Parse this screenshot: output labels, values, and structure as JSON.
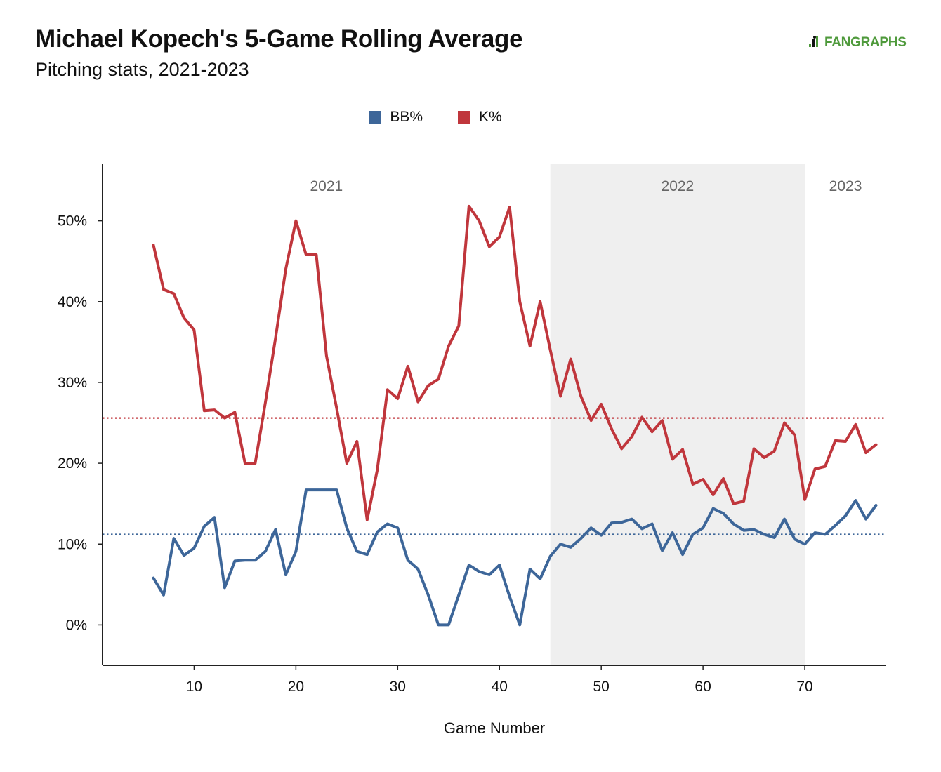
{
  "header": {
    "title": "Michael Kopech's 5-Game Rolling Average",
    "subtitle": "Pitching stats, 2021-2023",
    "logo_text": "FANGRAPHS",
    "logo_icon": "fangraphs-logo-icon"
  },
  "colors": {
    "bb": "#3d6699",
    "k": "#c0363c",
    "shade": "#efefef",
    "axis": "#222222",
    "logo": "#4f9a3c"
  },
  "chart_data": {
    "type": "line",
    "title": "Michael Kopech's 5-Game Rolling Average",
    "subtitle": "Pitching stats, 2021-2023",
    "xlabel": "Game Number",
    "ylabel": "",
    "xlim": [
      1,
      78
    ],
    "ylim": [
      -5,
      57
    ],
    "x_ticks": [
      10,
      20,
      30,
      40,
      50,
      60,
      70
    ],
    "y_ticks": [
      0,
      10,
      20,
      30,
      40,
      50
    ],
    "y_tick_labels": [
      "0%",
      "10%",
      "20%",
      "30%",
      "40%",
      "50%"
    ],
    "legend_position": "top-center",
    "grid": false,
    "season_regions": [
      {
        "label": "2021",
        "start": 1,
        "end": 45,
        "shaded": false
      },
      {
        "label": "2022",
        "start": 45,
        "end": 70,
        "shaded": true
      },
      {
        "label": "2023",
        "start": 70,
        "end": 78,
        "shaded": false
      }
    ],
    "reference_lines": [
      {
        "series": "K%",
        "value": 25.6
      },
      {
        "series": "BB%",
        "value": 11.2
      }
    ],
    "x": [
      6,
      7,
      8,
      9,
      10,
      11,
      12,
      13,
      14,
      15,
      16,
      17,
      18,
      19,
      20,
      21,
      22,
      23,
      24,
      25,
      26,
      27,
      28,
      29,
      30,
      31,
      32,
      33,
      34,
      35,
      36,
      37,
      38,
      39,
      40,
      41,
      42,
      43,
      44,
      45,
      46,
      47,
      48,
      49,
      50,
      51,
      52,
      53,
      54,
      55,
      56,
      57,
      58,
      59,
      60,
      61,
      62,
      63,
      64,
      65,
      66,
      67,
      68,
      69,
      70,
      71,
      72,
      73,
      74,
      75,
      76,
      77
    ],
    "series": [
      {
        "name": "BB%",
        "values": [
          5.8,
          3.7,
          10.7,
          8.6,
          9.5,
          12.2,
          13.3,
          4.6,
          7.9,
          8.0,
          8.0,
          9.1,
          11.8,
          6.2,
          9.1,
          16.7,
          16.7,
          16.7,
          16.7,
          12.0,
          9.1,
          8.7,
          11.5,
          12.5,
          12.0,
          8.0,
          6.9,
          3.7,
          0.0,
          0.0,
          3.7,
          7.4,
          6.6,
          6.2,
          7.4,
          3.5,
          0.0,
          6.9,
          5.7,
          8.5,
          10.0,
          9.6,
          10.7,
          12.0,
          11.1,
          12.6,
          12.7,
          13.1,
          11.9,
          12.5,
          9.2,
          11.4,
          8.7,
          11.2,
          12.0,
          14.4,
          13.8,
          12.5,
          11.7,
          11.8,
          11.2,
          10.8,
          13.1,
          10.6,
          10.0,
          11.4,
          11.2,
          12.3,
          13.5,
          15.4,
          13.1,
          14.8
        ]
      },
      {
        "name": "K%",
        "values": [
          47.0,
          41.5,
          41.0,
          38.0,
          36.5,
          26.5,
          26.6,
          25.6,
          26.3,
          20.0,
          20.0,
          27.5,
          35.5,
          44.0,
          50.0,
          45.8,
          45.8,
          33.3,
          26.8,
          20.0,
          22.7,
          13.0,
          19.2,
          29.1,
          28.0,
          32.0,
          27.6,
          29.6,
          30.4,
          34.5,
          37.0,
          51.8,
          50.0,
          46.8,
          48.0,
          51.7,
          40.0,
          34.5,
          40.0,
          34.0,
          28.3,
          32.9,
          28.3,
          25.3,
          27.3,
          24.3,
          21.8,
          23.3,
          25.7,
          23.9,
          25.3,
          20.5,
          21.7,
          17.4,
          18.0,
          16.1,
          18.1,
          15.0,
          15.3,
          21.8,
          20.7,
          21.5,
          25.0,
          23.5,
          15.5,
          19.3,
          19.6,
          22.8,
          22.7,
          24.8,
          21.3,
          22.3
        ]
      }
    ]
  }
}
